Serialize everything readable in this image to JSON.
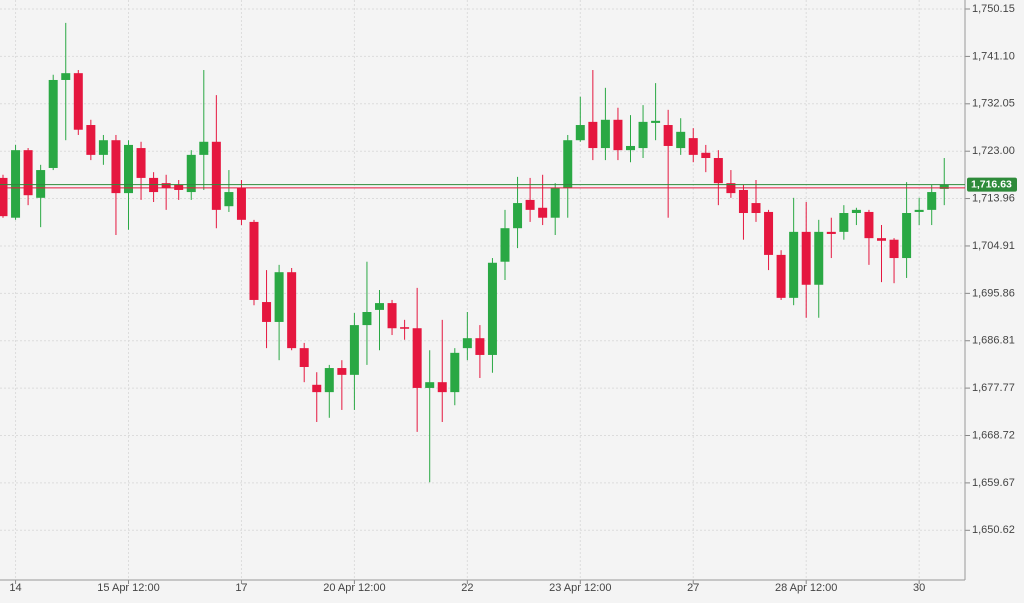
{
  "chart_data": {
    "type": "candlestick",
    "up_color": "#2aa844",
    "down_color": "#e5173f",
    "grid": true,
    "categories": [
      null,
      "14",
      null,
      null,
      null,
      null,
      null,
      null,
      null,
      null,
      "15 Apr 12:00",
      null,
      null,
      null,
      null,
      null,
      null,
      null,
      null,
      "17",
      null,
      null,
      null,
      null,
      null,
      null,
      null,
      null,
      "20 Apr 12:00",
      null,
      null,
      null,
      null,
      null,
      null,
      null,
      null,
      "22",
      null,
      null,
      null,
      null,
      null,
      null,
      null,
      null,
      "23 Apr 12:00",
      null,
      null,
      null,
      null,
      null,
      null,
      null,
      null,
      "27",
      null,
      null,
      null,
      null,
      null,
      null,
      null,
      null,
      "28 Apr 12:00",
      null,
      null,
      null,
      null,
      null,
      null,
      null,
      null,
      "30",
      null,
      null
    ],
    "open": [
      1717.9,
      1710.3,
      1723.2,
      1714.1,
      1719.8,
      1736.6,
      1737.9,
      1728.0,
      1722.3,
      1725.1,
      1715.0,
      1723.6,
      1717.9,
      1716.9,
      1716.6,
      1715.2,
      1722.3,
      1724.8,
      1712.5,
      1716.0,
      1709.5,
      1694.2,
      1690.4,
      1699.9,
      1685.4,
      1678.4,
      1677.0,
      1681.6,
      1680.3,
      1689.8,
      1692.7,
      1694.0,
      1689.4,
      1689.2,
      1677.8,
      1678.9,
      1677.0,
      1685.4,
      1687.3,
      1684.1,
      1701.9,
      1708.3,
      1713.7,
      1712.2,
      1710.3,
      1716.0,
      1725.1,
      1728.6,
      1723.6,
      1729.0,
      1723.2,
      1723.6,
      1728.4,
      1728.0,
      1723.6,
      1725.5,
      1722.7,
      1721.7,
      1716.9,
      1715.6,
      1713.1,
      1711.4,
      1703.2,
      1695.0,
      1707.6,
      1697.5,
      1707.6,
      1707.6,
      1711.2,
      1711.4,
      1706.4,
      1706.1,
      1702.6,
      1711.4,
      1711.8,
      1715.8
    ],
    "high": [
      1718.5,
      1724.2,
      1723.6,
      1720.4,
      1737.6,
      1747.5,
      1738.5,
      1729.0,
      1726.1,
      1726.1,
      1725.1,
      1724.8,
      1719.0,
      1718.5,
      1717.5,
      1723.2,
      1738.5,
      1733.7,
      1719.4,
      1717.5,
      1709.9,
      1700.3,
      1701.3,
      1700.7,
      1686.4,
      1680.8,
      1682.2,
      1683.1,
      1692.1,
      1701.9,
      1696.5,
      1694.6,
      1690.8,
      1696.9,
      1685.0,
      1690.8,
      1685.4,
      1692.3,
      1689.8,
      1702.6,
      1711.8,
      1718.1,
      1717.9,
      1718.5,
      1716.9,
      1726.1,
      1733.4,
      1738.5,
      1735.1,
      1731.3,
      1729.9,
      1731.8,
      1736.0,
      1730.9,
      1729.3,
      1727.4,
      1724.2,
      1723.2,
      1719.4,
      1716.6,
      1717.5,
      1711.8,
      1704.1,
      1714.1,
      1713.3,
      1709.9,
      1710.3,
      1712.7,
      1712.2,
      1711.8,
      1708.9,
      1706.4,
      1717.1,
      1714.1,
      1716.6,
      1721.7
    ],
    "low": [
      1710.3,
      1709.9,
      1712.7,
      1708.5,
      1719.4,
      1725.1,
      1726.1,
      1721.3,
      1720.4,
      1707.0,
      1708.0,
      1713.7,
      1713.3,
      1711.8,
      1713.7,
      1713.7,
      1715.6,
      1708.3,
      1711.4,
      1708.9,
      1693.6,
      1685.4,
      1683.1,
      1685.0,
      1678.9,
      1671.3,
      1672.1,
      1673.6,
      1673.6,
      1682.2,
      1685.0,
      1687.9,
      1687.0,
      1669.4,
      1659.8,
      1671.3,
      1674.5,
      1683.1,
      1679.7,
      1680.7,
      1698.4,
      1704.5,
      1709.5,
      1708.9,
      1707.0,
      1710.3,
      1724.8,
      1721.3,
      1721.3,
      1721.3,
      1720.9,
      1721.7,
      1725.1,
      1710.3,
      1722.3,
      1720.9,
      1719.0,
      1712.7,
      1714.1,
      1706.1,
      1709.5,
      1700.3,
      1694.6,
      1693.6,
      1691.2,
      1691.2,
      1702.6,
      1706.1,
      1708.9,
      1701.3,
      1698.0,
      1697.8,
      1698.8,
      1708.9,
      1708.9,
      1712.7
    ],
    "close": [
      1710.6,
      1723.2,
      1714.6,
      1719.4,
      1736.6,
      1737.9,
      1727.1,
      1722.3,
      1725.1,
      1715.0,
      1724.2,
      1717.9,
      1715.2,
      1716.0,
      1715.6,
      1722.3,
      1724.8,
      1711.8,
      1715.2,
      1709.9,
      1694.6,
      1690.4,
      1699.9,
      1685.4,
      1681.8,
      1677.0,
      1681.6,
      1680.3,
      1689.8,
      1692.3,
      1694.0,
      1689.2,
      1689.1,
      1677.8,
      1678.9,
      1677.0,
      1684.5,
      1687.3,
      1684.1,
      1701.7,
      1708.3,
      1713.1,
      1711.8,
      1710.3,
      1716.0,
      1725.1,
      1728.0,
      1723.6,
      1729.0,
      1723.2,
      1724.0,
      1728.6,
      1728.8,
      1724.0,
      1726.7,
      1722.3,
      1721.7,
      1716.9,
      1715.0,
      1711.2,
      1711.2,
      1703.2,
      1695.0,
      1707.6,
      1697.5,
      1707.6,
      1707.2,
      1711.2,
      1711.8,
      1706.4,
      1705.9,
      1702.6,
      1711.2,
      1711.8,
      1715.2,
      1716.63
    ],
    "ylim": [
      1641.13,
      1751.87
    ],
    "yticks": [
      {
        "value": 1750.15,
        "label": "1,750.15"
      },
      {
        "value": 1741.1,
        "label": "1,741.10"
      },
      {
        "value": 1732.05,
        "label": "1,732.05"
      },
      {
        "value": 1723.0,
        "label": "1,723.00"
      },
      {
        "value": 1713.96,
        "label": "1,713.96"
      },
      {
        "value": 1704.91,
        "label": "1,704.91"
      },
      {
        "value": 1695.86,
        "label": "1,695.86"
      },
      {
        "value": 1686.81,
        "label": "1,686.81"
      },
      {
        "value": 1677.77,
        "label": "1,677.77"
      },
      {
        "value": 1668.72,
        "label": "1,668.72"
      },
      {
        "value": 1659.67,
        "label": "1,659.67"
      },
      {
        "value": 1650.62,
        "label": "1,650.62"
      }
    ],
    "price_lines": [
      {
        "value": 1716.63,
        "label": "1,716.63",
        "color": "#2e8b3a"
      },
      {
        "value": 1716.0,
        "color": "#e5173f"
      }
    ]
  }
}
